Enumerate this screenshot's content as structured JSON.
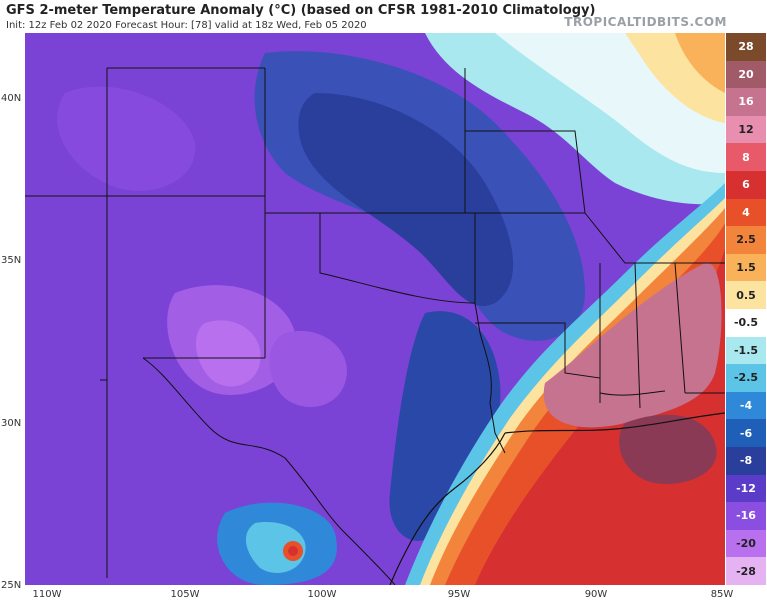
{
  "header": {
    "title": "GFS 2-meter Temperature Anomaly (°C) (based on CFSR 1981-2010 Climatology)",
    "subtitle": "Init: 12z Feb 02 2020   Forecast Hour: [78]   valid at 18z Wed, Feb 05 2020",
    "brand": "TROPICALTIDBITS.COM"
  },
  "axes": {
    "lat_labels": [
      "40N",
      "35N",
      "30N",
      "25N"
    ],
    "lon_labels": [
      "110W",
      "105W",
      "100W",
      "95W",
      "90W",
      "85W"
    ]
  },
  "legend": {
    "items": [
      {
        "label": "28",
        "color": "#7a4a2a"
      },
      {
        "label": "20",
        "color": "#a05a68"
      },
      {
        "label": "16",
        "color": "#c5738e"
      },
      {
        "label": "12",
        "color": "#e88fb0"
      },
      {
        "label": "8",
        "color": "#e85a6a"
      },
      {
        "label": "6",
        "color": "#d63030"
      },
      {
        "label": "4",
        "color": "#e8502a"
      },
      {
        "label": "2.5",
        "color": "#f3843c"
      },
      {
        "label": "1.5",
        "color": "#f9b25a"
      },
      {
        "label": "0.5",
        "color": "#fde3a0"
      },
      {
        "label": "-0.5",
        "color": "#ffffff"
      },
      {
        "label": "-1.5",
        "color": "#a8e8ee"
      },
      {
        "label": "-2.5",
        "color": "#5cc4e6"
      },
      {
        "label": "-4",
        "color": "#2f88d8"
      },
      {
        "label": "-6",
        "color": "#1f5fb8"
      },
      {
        "label": "-8",
        "color": "#2a3f9c"
      },
      {
        "label": "-12",
        "color": "#5a3cc8"
      },
      {
        "label": "-16",
        "color": "#8a4ee0"
      },
      {
        "label": "-20",
        "color": "#b870ee"
      },
      {
        "label": "-28",
        "color": "#e6b3f2"
      }
    ]
  }
}
